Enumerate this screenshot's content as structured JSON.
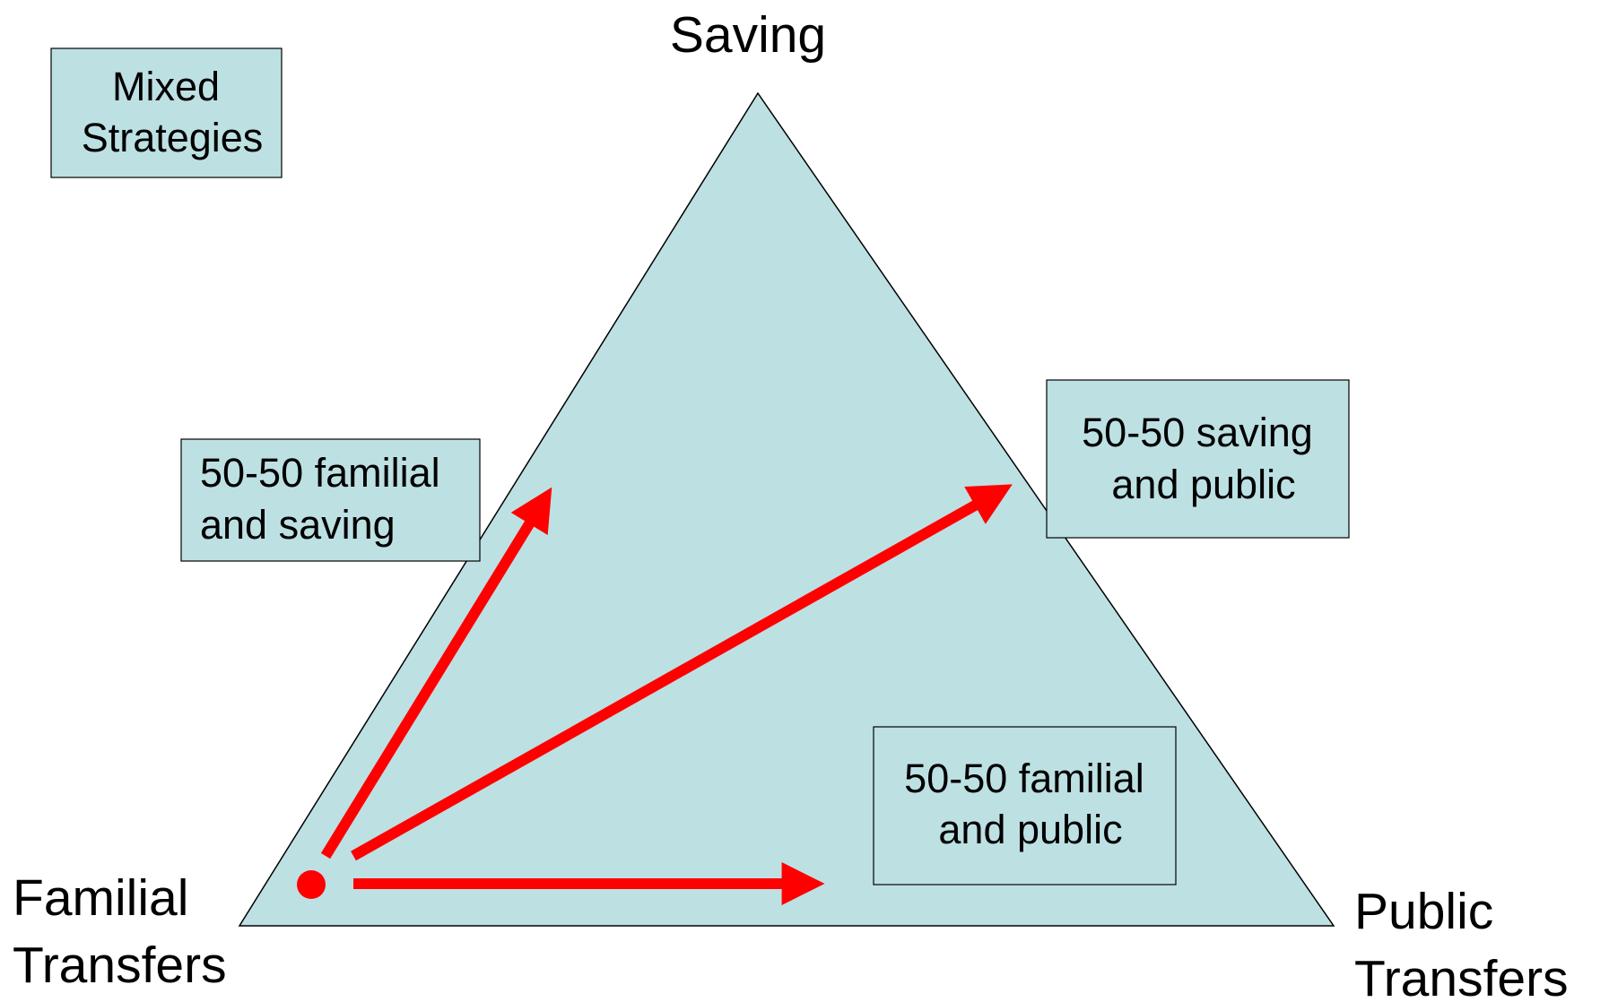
{
  "title": [
    "Mixed",
    "Strategies"
  ],
  "vertices": {
    "top": [
      "Saving"
    ],
    "left": [
      "Familial",
      "Transfers"
    ],
    "right": [
      "Public",
      "Transfers"
    ]
  },
  "boxes": [
    {
      "lines": [
        "50-50 familial",
        "and saving"
      ]
    },
    {
      "lines": [
        "50-50 saving",
        "and public"
      ]
    },
    {
      "lines": [
        "50-50 familial",
        "and public"
      ]
    }
  ]
}
